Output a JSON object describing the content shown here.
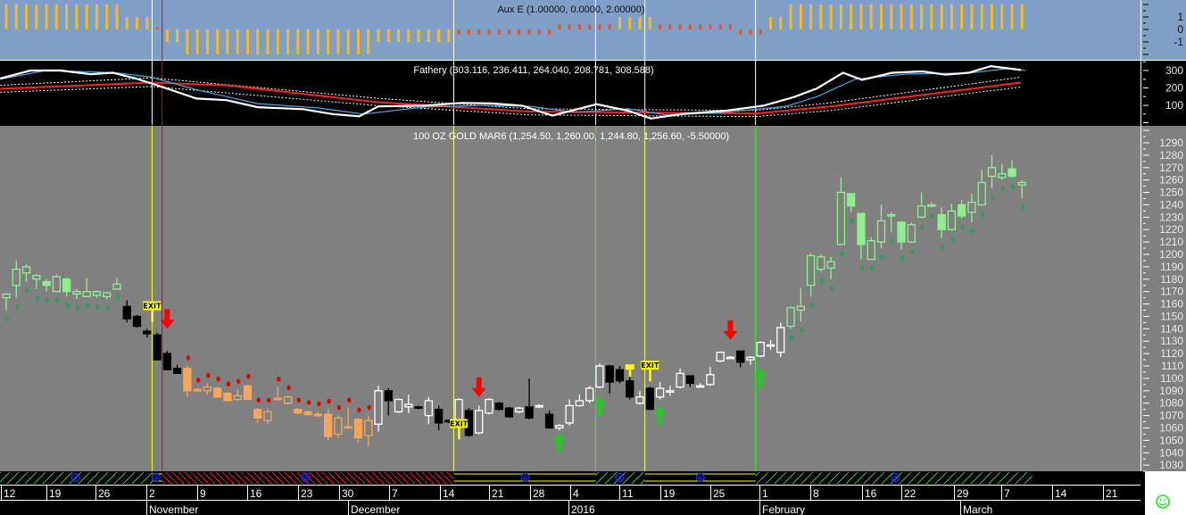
{
  "colors": {
    "aux_bg": "#7f9fc6",
    "price_bg": "#808080",
    "panel_bg": "#000000",
    "aux_bar": "#f5b82e",
    "aux_bar_alt": "#e8552a",
    "green_candle": "#90ee90",
    "green_dot": "#2e9e5a",
    "orange_candle": "#f7a55a",
    "red_dot": "#e00000",
    "black_candle": "#000000",
    "white_candle": "#ffffff",
    "fathery_main": "#ffffff",
    "fathery_signal": "#4aa8e0",
    "fathery_mid": "#ff2020",
    "arrow_up": "#2fbf2f",
    "arrow_down": "#ff0000",
    "exit_flag": "#ffff00",
    "smiley": "#22dd22"
  },
  "aux_panel": {
    "title": "Aux E (1.00000, 0.0000, 2.00000)",
    "axis_labels": [
      "1",
      "0",
      "-1"
    ],
    "values": [
      2,
      2,
      2,
      2,
      2,
      2,
      2,
      2,
      2,
      2,
      2,
      2,
      1,
      1,
      1,
      0.2,
      -1,
      -1,
      -2,
      -2,
      -2,
      -2,
      -2,
      -2,
      -2,
      -2,
      -2,
      -2,
      -2,
      -2,
      -2,
      -2,
      -2,
      -2,
      -2,
      -2,
      -2,
      -1,
      -1,
      -1,
      -1,
      -1,
      -1,
      -1,
      -1,
      -0.4,
      -0.4,
      -0.4,
      -0.4,
      -0.4,
      -0.4,
      -0.4,
      -0.4,
      -0.4,
      -0.4,
      0.4,
      0.4,
      0.4,
      0.4,
      0.4,
      0.4,
      1,
      1,
      1,
      1,
      0.4,
      0.4,
      0.4,
      0.4,
      0.4,
      0.4,
      0.4,
      0.4,
      -0.4,
      -0.4,
      -0.4,
      1,
      1,
      2,
      2,
      2,
      2,
      2,
      2,
      2,
      2,
      2,
      2,
      2,
      2,
      2,
      2,
      2,
      2,
      2,
      2,
      2,
      2,
      2,
      2,
      2,
      2
    ]
  },
  "fathery_panel": {
    "title": "Fathery (303.116, 236.411, 264.040, 208.781, 308.588)",
    "axis_labels": [
      "300",
      "200",
      "100"
    ],
    "main_line": [
      [
        -0.6,
        254
      ],
      [
        2.4,
        300
      ],
      [
        5.4,
        300
      ],
      [
        8.4,
        279
      ],
      [
        10.6,
        287
      ],
      [
        12.9,
        254
      ],
      [
        15.2,
        212
      ],
      [
        18.9,
        139
      ],
      [
        21.9,
        130
      ],
      [
        25,
        89
      ],
      [
        29.5,
        78
      ],
      [
        32.5,
        49
      ],
      [
        35.1,
        37
      ],
      [
        37,
        94
      ],
      [
        41.5,
        98
      ],
      [
        45.3,
        114
      ],
      [
        48.3,
        111
      ],
      [
        51.3,
        98
      ],
      [
        54.3,
        41
      ],
      [
        58.7,
        106
      ],
      [
        61.8,
        69
      ],
      [
        64.1,
        24
      ],
      [
        67.1,
        49
      ],
      [
        71.6,
        69
      ],
      [
        75.3,
        98
      ],
      [
        78.3,
        147
      ],
      [
        80.6,
        197
      ],
      [
        83.2,
        287
      ],
      [
        85.1,
        246
      ],
      [
        88.1,
        287
      ],
      [
        91.1,
        295
      ],
      [
        93.4,
        276
      ],
      [
        95.7,
        287
      ],
      [
        97.9,
        325
      ],
      [
        100.9,
        303
      ]
    ],
    "signal_line": [
      [
        -0.6,
        250
      ],
      [
        3.9,
        300
      ],
      [
        10.7,
        288
      ],
      [
        14.4,
        262
      ],
      [
        18.9,
        190
      ],
      [
        25,
        110
      ],
      [
        31,
        85
      ],
      [
        35.5,
        50
      ],
      [
        41.5,
        90
      ],
      [
        47.5,
        100
      ],
      [
        52,
        95
      ],
      [
        56.5,
        60
      ],
      [
        61.8,
        80
      ],
      [
        65.6,
        45
      ],
      [
        71.6,
        60
      ],
      [
        77.6,
        95
      ],
      [
        80.6,
        150
      ],
      [
        84.4,
        250
      ],
      [
        89.6,
        280
      ],
      [
        95.7,
        285
      ],
      [
        99.4,
        310
      ],
      [
        101.3,
        300
      ]
    ],
    "mid_line": [
      [
        -0.6,
        195
      ],
      [
        14.4,
        231
      ],
      [
        21.9,
        215
      ],
      [
        37,
        118
      ],
      [
        52,
        64
      ],
      [
        74.5,
        53
      ],
      [
        82,
        94
      ],
      [
        100.9,
        231
      ]
    ],
    "upper_band": [
      [
        -0.6,
        215
      ],
      [
        14.4,
        258
      ],
      [
        37,
        140
      ],
      [
        52,
        80
      ],
      [
        74.5,
        70
      ],
      [
        82,
        115
      ],
      [
        100.9,
        262
      ]
    ],
    "lower_band": [
      [
        -0.6,
        175
      ],
      [
        14.4,
        208
      ],
      [
        37,
        98
      ],
      [
        52,
        45
      ],
      [
        74.5,
        35
      ],
      [
        82,
        70
      ],
      [
        100.9,
        205
      ]
    ]
  },
  "price_panel": {
    "title": "100 OZ GOLD MAR6 (1,254.50, 1,260.00, 1,244.80, 1,256.60, -5.50000)",
    "axis_labels": [
      "1290",
      "1280",
      "1270",
      "1260",
      "1250",
      "1240",
      "1230",
      "1220",
      "1210",
      "1200",
      "1190",
      "1180",
      "1170",
      "1160",
      "1150",
      "1140",
      "1130",
      "1120",
      "1110",
      "1100",
      "1090",
      "1080",
      "1070",
      "1060",
      "1050",
      "1040",
      "1030"
    ],
    "sections": [
      {
        "from": 0,
        "to": 11,
        "style": "green"
      },
      {
        "from": 12,
        "to": 17,
        "style": "black-white"
      },
      {
        "from": 18,
        "to": 36,
        "style": "orange"
      },
      {
        "from": 37,
        "to": 77,
        "style": "black-white"
      },
      {
        "from": 78,
        "to": 101,
        "style": "green"
      }
    ],
    "bars_ohlc": [
      [
        1165,
        1168,
        1155,
        1168
      ],
      [
        1175,
        1195,
        1165,
        1188
      ],
      [
        1185,
        1192,
        1178,
        1190
      ],
      [
        1180,
        1184,
        1172,
        1183
      ],
      [
        1178,
        1180,
        1170,
        1175
      ],
      [
        1170,
        1184,
        1170,
        1182
      ],
      [
        1180,
        1181,
        1166,
        1170
      ],
      [
        1168,
        1172,
        1164,
        1170
      ],
      [
        1166,
        1181,
        1166,
        1170
      ],
      [
        1167,
        1171,
        1165,
        1170
      ],
      [
        1166,
        1170,
        1164,
        1169
      ],
      [
        1172,
        1181,
        1172,
        1176
      ],
      [
        1158,
        1163,
        1145,
        1148
      ],
      [
        1150,
        1151,
        1141,
        1142
      ],
      [
        1138,
        1140,
        1133,
        1136
      ],
      [
        1135,
        1137,
        1115,
        1115
      ],
      [
        1120,
        1122,
        1107,
        1107
      ],
      [
        1108,
        1111,
        1104,
        1104
      ],
      [
        1108,
        1110,
        1085,
        1090
      ],
      [
        1090,
        1092,
        1089,
        1091
      ],
      [
        1090,
        1096,
        1087,
        1093
      ],
      [
        1092,
        1093,
        1085,
        1085
      ],
      [
        1088,
        1089,
        1082,
        1082
      ],
      [
        1083,
        1091,
        1082,
        1086
      ],
      [
        1094,
        1095,
        1083,
        1083
      ],
      [
        1075,
        1076,
        1064,
        1068
      ],
      [
        1066,
        1076,
        1063,
        1073
      ],
      [
        1083,
        1093,
        1082,
        1084
      ],
      [
        1080,
        1086,
        1079,
        1085
      ],
      [
        1075,
        1076,
        1071,
        1072
      ],
      [
        1073,
        1074,
        1070,
        1071
      ],
      [
        1071,
        1073,
        1069,
        1070
      ],
      [
        1071,
        1075,
        1050,
        1053
      ],
      [
        1055,
        1070,
        1052,
        1068
      ],
      [
        1060,
        1076,
        1059,
        1061
      ],
      [
        1067,
        1068,
        1048,
        1052
      ],
      [
        1054,
        1070,
        1045,
        1066
      ],
      [
        1063,
        1094,
        1057,
        1090
      ],
      [
        1090,
        1092,
        1070,
        1082
      ],
      [
        1073,
        1084,
        1072,
        1083
      ],
      [
        1077,
        1087,
        1072,
        1079
      ],
      [
        1077,
        1078,
        1075,
        1076
      ],
      [
        1070,
        1085,
        1063,
        1082
      ],
      [
        1075,
        1078,
        1058,
        1064
      ],
      [
        1066,
        1067,
        1064,
        1065
      ],
      [
        1063,
        1084,
        1062,
        1083
      ],
      [
        1074,
        1076,
        1053,
        1054
      ],
      [
        1056,
        1078,
        1055,
        1074
      ],
      [
        1072,
        1084,
        1071,
        1083
      ],
      [
        1080,
        1081,
        1074,
        1075
      ],
      [
        1076,
        1077,
        1069,
        1069
      ],
      [
        1073,
        1077,
        1072,
        1076
      ],
      [
        1077,
        1100,
        1067,
        1068
      ],
      [
        1077,
        1079,
        1076,
        1078
      ],
      [
        1071,
        1074,
        1060,
        1060
      ],
      [
        1060,
        1063,
        1058,
        1062
      ],
      [
        1064,
        1083,
        1062,
        1078
      ],
      [
        1078,
        1087,
        1077,
        1082
      ],
      [
        1082,
        1094,
        1080,
        1092
      ],
      [
        1093,
        1112,
        1092,
        1110
      ],
      [
        1110,
        1111,
        1088,
        1097
      ],
      [
        1107,
        1110,
        1096,
        1098
      ],
      [
        1098,
        1102,
        1083,
        1085
      ],
      [
        1080,
        1090,
        1079,
        1085
      ],
      [
        1092,
        1093,
        1075,
        1075
      ],
      [
        1085,
        1097,
        1083,
        1092
      ],
      [
        1090,
        1094,
        1086,
        1090
      ],
      [
        1093,
        1108,
        1092,
        1104
      ],
      [
        1102,
        1102,
        1093,
        1096
      ],
      [
        1094,
        1096,
        1093,
        1094
      ],
      [
        1095,
        1109,
        1094,
        1103
      ],
      [
        1114,
        1121,
        1113,
        1121
      ],
      [
        1117,
        1118,
        1116,
        1117
      ],
      [
        1122,
        1122,
        1109,
        1113
      ],
      [
        1115,
        1118,
        1111,
        1117
      ],
      [
        1118,
        1130,
        1117,
        1129
      ],
      [
        1127,
        1131,
        1123,
        1127
      ],
      [
        1121,
        1145,
        1117,
        1141
      ],
      [
        1142,
        1158,
        1140,
        1157
      ],
      [
        1155,
        1173,
        1146,
        1158
      ],
      [
        1175,
        1201,
        1166,
        1199
      ],
      [
        1188,
        1200,
        1186,
        1198
      ],
      [
        1189,
        1198,
        1180,
        1194
      ],
      [
        1208,
        1262,
        1208,
        1250
      ],
      [
        1249,
        1249,
        1234,
        1239
      ],
      [
        1233,
        1233,
        1196,
        1208
      ],
      [
        1196,
        1214,
        1196,
        1211
      ],
      [
        1210,
        1240,
        1205,
        1227
      ],
      [
        1232,
        1234,
        1218,
        1232
      ],
      [
        1226,
        1226,
        1204,
        1210
      ],
      [
        1210,
        1226,
        1209,
        1224
      ],
      [
        1230,
        1250,
        1229,
        1239
      ],
      [
        1240,
        1242,
        1238,
        1240
      ],
      [
        1232,
        1238,
        1213,
        1220
      ],
      [
        1220,
        1241,
        1219,
        1235
      ],
      [
        1240,
        1244,
        1229,
        1231
      ],
      [
        1234,
        1249,
        1226,
        1242
      ],
      [
        1240,
        1268,
        1239,
        1258
      ],
      [
        1263,
        1280,
        1253,
        1270
      ],
      [
        1262,
        1273,
        1260,
        1265
      ],
      [
        1269,
        1276,
        1262,
        1263
      ],
      [
        1256,
        1260,
        1245,
        1258
      ]
    ],
    "signals": [
      {
        "type": "exit",
        "bar": 14.5,
        "price": 1155,
        "label": "EXIT"
      },
      {
        "type": "exit",
        "bar": 45,
        "price": 1060,
        "label": "EXIT"
      },
      {
        "type": "exit",
        "bar": 64,
        "price": 1107,
        "label": "EXIT"
      },
      {
        "type": "exit-small",
        "bar": 62,
        "price": 1107,
        "label": "EE"
      },
      {
        "type": "down",
        "bar": 16,
        "price": 1140
      },
      {
        "type": "down",
        "bar": 47,
        "price": 1085
      },
      {
        "type": "down",
        "bar": 72,
        "price": 1131
      },
      {
        "type": "up",
        "bar": 55,
        "price": 1058
      },
      {
        "type": "up",
        "bar": 59,
        "price": 1087
      },
      {
        "type": "up",
        "bar": 65,
        "price": 1080
      },
      {
        "type": "up",
        "bar": 75,
        "price": 1110
      }
    ],
    "markers": [
      {
        "bar": 14.5,
        "color": "#ffff00"
      },
      {
        "bar": 15.5,
        "color": "#dd0000"
      },
      {
        "bar": 44.5,
        "color": "#ffff66"
      },
      {
        "bar": 58.6,
        "color": "#33ee33"
      },
      {
        "bar": 63.5,
        "color": "#ffff66"
      },
      {
        "bar": 74.5,
        "color": "#33ee33"
      }
    ]
  },
  "state_strip": {
    "segments": [
      {
        "from": -0.7,
        "to": 14.5,
        "style": "green-hatch"
      },
      {
        "from": 14.5,
        "to": 15.5,
        "style": "yellow-lines"
      },
      {
        "from": 15.5,
        "to": 44.5,
        "style": "red-hatch"
      },
      {
        "from": 44.5,
        "to": 58.6,
        "style": "yellow-lines"
      },
      {
        "from": 58.6,
        "to": 63.5,
        "style": "green-hatch"
      },
      {
        "from": 63.5,
        "to": 74.5,
        "style": "yellow-lines"
      },
      {
        "from": 74.5,
        "to": 102,
        "style": "green-hatch"
      }
    ],
    "face_icons": [
      6.9,
      14.9,
      29.8,
      51.6,
      61,
      69,
      88.4
    ]
  },
  "x_axis": {
    "days": [
      "12",
      "19",
      "26",
      "2",
      "9",
      "16",
      "23",
      "30",
      "7",
      "14",
      "21",
      "28",
      "4",
      "11",
      "19",
      "25",
      "1",
      "8",
      "16",
      "22",
      "29",
      "7",
      "14",
      "21"
    ],
    "months": [
      "November",
      "December",
      "2016",
      "February",
      "March"
    ]
  },
  "status": {
    "icon": "smiley-icon"
  }
}
